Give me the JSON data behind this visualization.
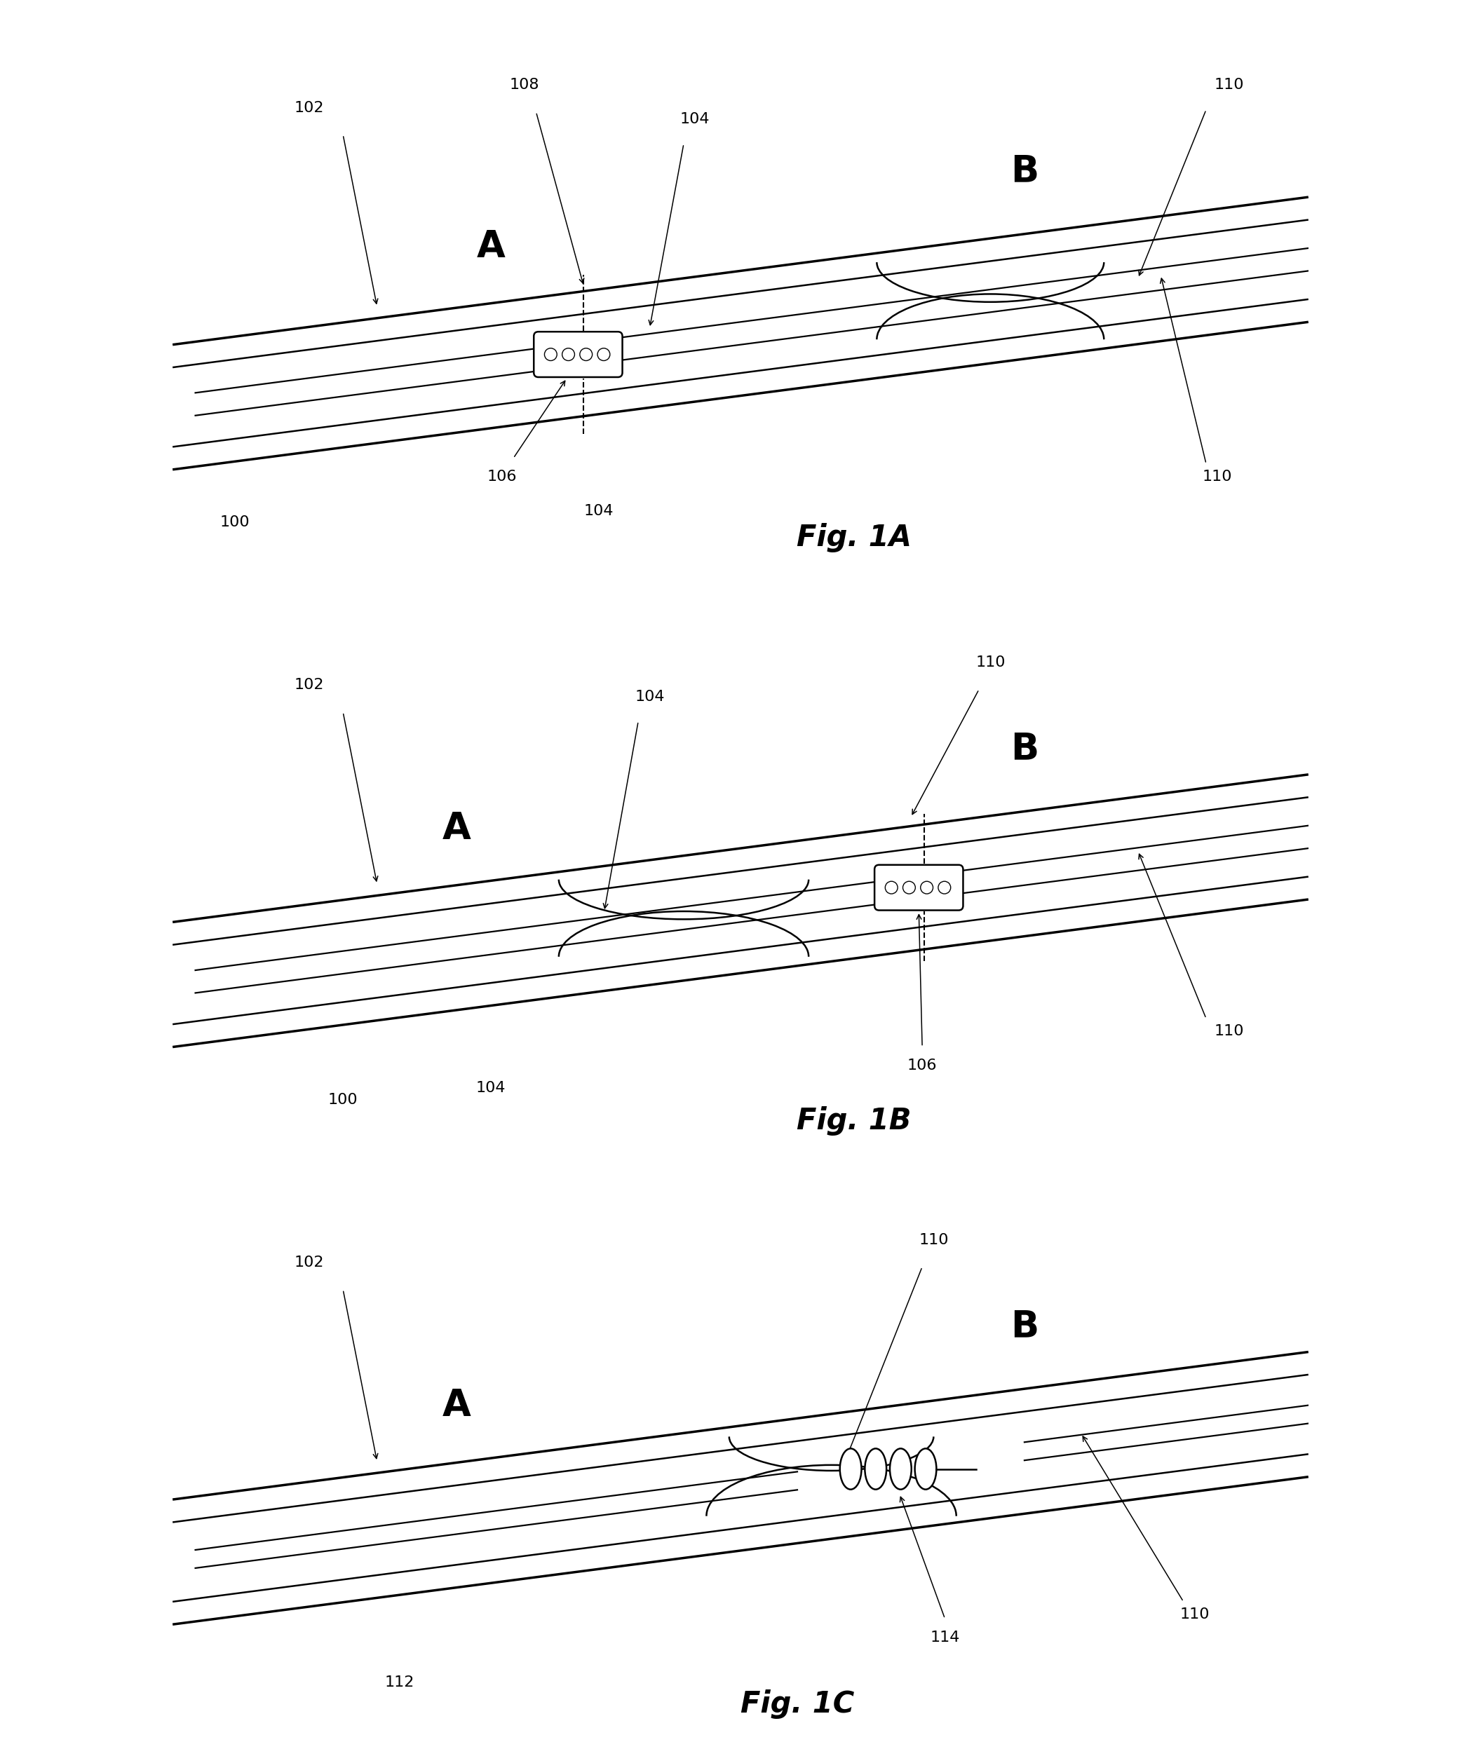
{
  "bg_color": "#ffffff",
  "fig_width": 21.12,
  "fig_height": 24.85,
  "lw_outer": 2.5,
  "lw_inner": 1.8,
  "lw_cath": 1.6,
  "lw_dash": 1.5,
  "lw_device": 1.8,
  "fontsize_AB": 38,
  "fontsize_fig": 30,
  "fontsize_ref": 16,
  "panels": [
    "1A",
    "1B",
    "1C"
  ]
}
